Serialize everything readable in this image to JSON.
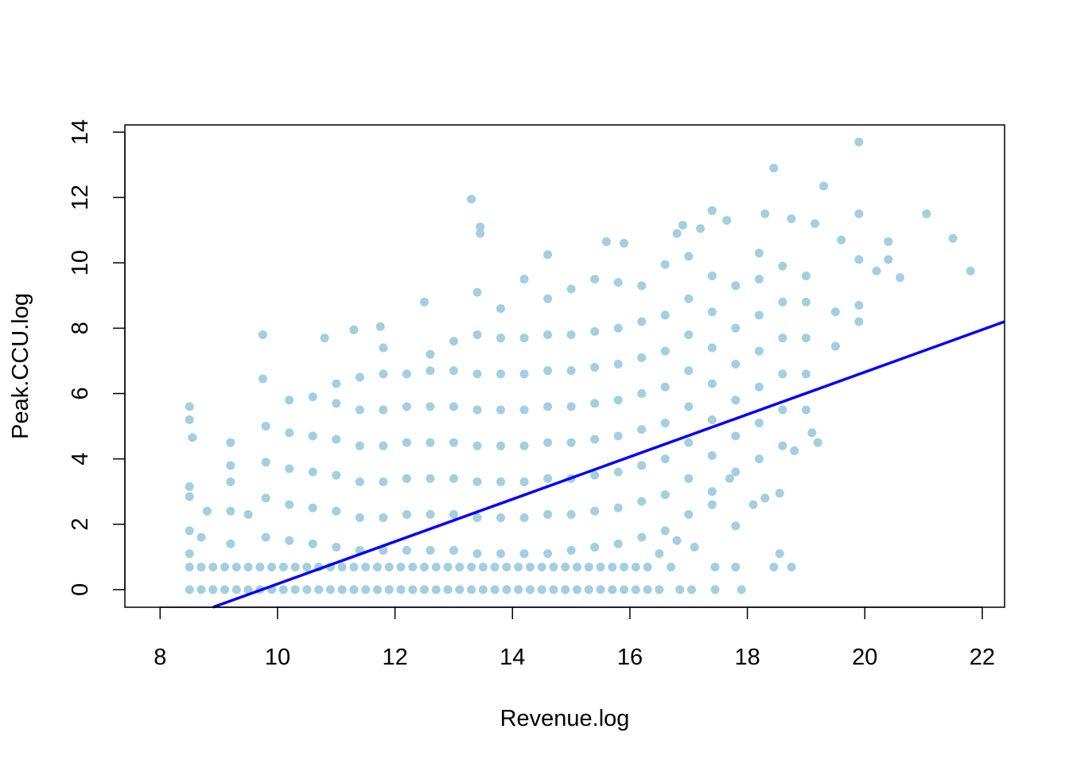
{
  "chart_data": {
    "type": "scatter",
    "x_label": "Revenue.log",
    "y_label": "Peak.CCU.log",
    "xlim": [
      7.4,
      22.38
    ],
    "ylim": [
      -0.54,
      14.22
    ],
    "xticks": [
      8,
      10,
      12,
      14,
      16,
      18,
      20,
      22
    ],
    "yticks": [
      0,
      2,
      4,
      6,
      8,
      10,
      12,
      14
    ],
    "point_color": "#a3cfe0",
    "points": [
      [
        8.5,
        0
      ],
      [
        8.7,
        0
      ],
      [
        8.9,
        0
      ],
      [
        9.1,
        0
      ],
      [
        9.3,
        0
      ],
      [
        9.5,
        0
      ],
      [
        9.7,
        0
      ],
      [
        9.9,
        0
      ],
      [
        10.1,
        0
      ],
      [
        10.3,
        0
      ],
      [
        10.5,
        0
      ],
      [
        10.7,
        0
      ],
      [
        10.9,
        0
      ],
      [
        11.1,
        0
      ],
      [
        11.3,
        0
      ],
      [
        11.5,
        0
      ],
      [
        11.7,
        0
      ],
      [
        11.9,
        0
      ],
      [
        12.1,
        0
      ],
      [
        12.3,
        0
      ],
      [
        12.5,
        0
      ],
      [
        12.7,
        0
      ],
      [
        12.9,
        0
      ],
      [
        13.1,
        0
      ],
      [
        13.3,
        0
      ],
      [
        13.5,
        0
      ],
      [
        13.7,
        0
      ],
      [
        13.9,
        0
      ],
      [
        14.1,
        0
      ],
      [
        14.3,
        0
      ],
      [
        14.5,
        0
      ],
      [
        14.7,
        0
      ],
      [
        14.9,
        0
      ],
      [
        15.1,
        0
      ],
      [
        15.3,
        0
      ],
      [
        15.5,
        0
      ],
      [
        15.7,
        0
      ],
      [
        15.9,
        0
      ],
      [
        16.1,
        0
      ],
      [
        16.3,
        0
      ],
      [
        16.5,
        0
      ],
      [
        16.85,
        0
      ],
      [
        17.05,
        0
      ],
      [
        17.45,
        0
      ],
      [
        17.9,
        0
      ],
      [
        8.5,
        0.69
      ],
      [
        8.7,
        0.69
      ],
      [
        8.9,
        0.69
      ],
      [
        9.1,
        0.69
      ],
      [
        9.3,
        0.69
      ],
      [
        9.5,
        0.69
      ],
      [
        9.7,
        0.69
      ],
      [
        9.9,
        0.69
      ],
      [
        10.1,
        0.69
      ],
      [
        10.3,
        0.69
      ],
      [
        10.5,
        0.69
      ],
      [
        10.7,
        0.69
      ],
      [
        10.9,
        0.69
      ],
      [
        11.1,
        0.69
      ],
      [
        11.3,
        0.69
      ],
      [
        11.5,
        0.69
      ],
      [
        11.7,
        0.69
      ],
      [
        11.9,
        0.69
      ],
      [
        12.1,
        0.69
      ],
      [
        12.3,
        0.69
      ],
      [
        12.5,
        0.69
      ],
      [
        12.7,
        0.69
      ],
      [
        12.9,
        0.69
      ],
      [
        13.1,
        0.69
      ],
      [
        13.3,
        0.69
      ],
      [
        13.5,
        0.69
      ],
      [
        13.7,
        0.69
      ],
      [
        13.9,
        0.69
      ],
      [
        14.1,
        0.69
      ],
      [
        14.3,
        0.69
      ],
      [
        14.5,
        0.69
      ],
      [
        14.7,
        0.69
      ],
      [
        14.9,
        0.69
      ],
      [
        15.1,
        0.69
      ],
      [
        15.3,
        0.69
      ],
      [
        15.5,
        0.69
      ],
      [
        15.7,
        0.69
      ],
      [
        15.9,
        0.69
      ],
      [
        16.1,
        0.69
      ],
      [
        16.3,
        0.69
      ],
      [
        16.7,
        0.69
      ],
      [
        17.45,
        0.69
      ],
      [
        17.8,
        0.69
      ],
      [
        18.45,
        0.69
      ],
      [
        18.75,
        0.69
      ],
      [
        8.5,
        5.6
      ],
      [
        8.5,
        5.2
      ],
      [
        8.55,
        4.65
      ],
      [
        8.5,
        3.15
      ],
      [
        8.5,
        2.85
      ],
      [
        8.5,
        1.8
      ],
      [
        8.5,
        1.1
      ],
      [
        8.7,
        1.6
      ],
      [
        8.8,
        2.4
      ],
      [
        9.2,
        4.5
      ],
      [
        9.2,
        3.8
      ],
      [
        9.2,
        3.3
      ],
      [
        9.2,
        2.4
      ],
      [
        9.2,
        1.4
      ],
      [
        9.5,
        2.3
      ],
      [
        9.75,
        7.8
      ],
      [
        9.75,
        6.45
      ],
      [
        10.8,
        7.7
      ],
      [
        11.3,
        7.95
      ],
      [
        11.75,
        8.05
      ],
      [
        12.5,
        8.8
      ],
      [
        13.3,
        11.95
      ],
      [
        13.45,
        11.1
      ],
      [
        13.45,
        10.9
      ],
      [
        14.6,
        10.25
      ],
      [
        15.6,
        10.65
      ],
      [
        15.9,
        10.6
      ],
      [
        16.6,
        9.95
      ],
      [
        16.8,
        10.9
      ],
      [
        16.9,
        11.15
      ],
      [
        17.2,
        11.05
      ],
      [
        17.4,
        11.6
      ],
      [
        17.65,
        11.3
      ],
      [
        18.45,
        12.9
      ],
      [
        18.3,
        11.5
      ],
      [
        18.75,
        11.35
      ],
      [
        19.15,
        11.2
      ],
      [
        19.3,
        12.35
      ],
      [
        19.9,
        13.7
      ],
      [
        19.9,
        11.5
      ],
      [
        21.05,
        11.5
      ],
      [
        21.5,
        10.75
      ],
      [
        21.8,
        9.75
      ],
      [
        20.6,
        9.55
      ],
      [
        20.4,
        10.65
      ],
      [
        20.4,
        10.1
      ],
      [
        20.2,
        9.75
      ],
      [
        19.6,
        10.7
      ],
      [
        19.9,
        10.1
      ],
      [
        19.9,
        8.7
      ],
      [
        19.9,
        8.2
      ],
      [
        19.5,
        8.5
      ],
      [
        19.5,
        7.45
      ],
      [
        19.1,
        4.8
      ],
      [
        19.2,
        4.5
      ],
      [
        18.8,
        4.25
      ],
      [
        18.55,
        2.95
      ],
      [
        18.55,
        1.1
      ],
      [
        17.8,
        1.95
      ],
      [
        18.1,
        2.6
      ],
      [
        18.3,
        2.8
      ],
      [
        17.7,
        3.4
      ],
      [
        17.4,
        2.6
      ],
      [
        16.8,
        1.5
      ],
      [
        16.5,
        1.1
      ],
      [
        17.1,
        1.3
      ],
      [
        9.8,
        1.6
      ],
      [
        9.8,
        2.8
      ],
      [
        9.8,
        3.9
      ],
      [
        9.8,
        5.0
      ],
      [
        10.2,
        1.5
      ],
      [
        10.2,
        2.6
      ],
      [
        10.2,
        3.7
      ],
      [
        10.2,
        4.8
      ],
      [
        10.2,
        5.8
      ],
      [
        10.6,
        1.4
      ],
      [
        10.6,
        2.5
      ],
      [
        10.6,
        3.6
      ],
      [
        10.6,
        4.7
      ],
      [
        10.6,
        5.9
      ],
      [
        11.0,
        1.3
      ],
      [
        11.0,
        2.4
      ],
      [
        11.0,
        3.5
      ],
      [
        11.0,
        4.6
      ],
      [
        11.0,
        5.7
      ],
      [
        11.0,
        6.3
      ],
      [
        11.4,
        1.2
      ],
      [
        11.4,
        2.2
      ],
      [
        11.4,
        3.3
      ],
      [
        11.4,
        4.4
      ],
      [
        11.4,
        5.5
      ],
      [
        11.4,
        6.5
      ],
      [
        11.8,
        1.2
      ],
      [
        11.8,
        2.2
      ],
      [
        11.8,
        3.3
      ],
      [
        11.8,
        4.4
      ],
      [
        11.8,
        5.5
      ],
      [
        11.8,
        6.6
      ],
      [
        11.8,
        7.4
      ],
      [
        12.2,
        1.2
      ],
      [
        12.2,
        2.3
      ],
      [
        12.2,
        3.4
      ],
      [
        12.2,
        4.5
      ],
      [
        12.2,
        5.6
      ],
      [
        12.2,
        6.6
      ],
      [
        12.6,
        1.2
      ],
      [
        12.6,
        2.3
      ],
      [
        12.6,
        3.4
      ],
      [
        12.6,
        4.5
      ],
      [
        12.6,
        5.6
      ],
      [
        12.6,
        6.7
      ],
      [
        12.6,
        7.2
      ],
      [
        13.0,
        1.2
      ],
      [
        13.0,
        2.3
      ],
      [
        13.0,
        3.4
      ],
      [
        13.0,
        4.5
      ],
      [
        13.0,
        5.6
      ],
      [
        13.0,
        6.7
      ],
      [
        13.0,
        7.6
      ],
      [
        13.4,
        1.1
      ],
      [
        13.4,
        2.2
      ],
      [
        13.4,
        3.3
      ],
      [
        13.4,
        4.4
      ],
      [
        13.4,
        5.5
      ],
      [
        13.4,
        6.6
      ],
      [
        13.4,
        7.8
      ],
      [
        13.4,
        9.1
      ],
      [
        13.8,
        1.1
      ],
      [
        13.8,
        2.2
      ],
      [
        13.8,
        3.3
      ],
      [
        13.8,
        4.4
      ],
      [
        13.8,
        5.5
      ],
      [
        13.8,
        6.6
      ],
      [
        13.8,
        7.7
      ],
      [
        13.8,
        8.6
      ],
      [
        14.2,
        1.1
      ],
      [
        14.2,
        2.2
      ],
      [
        14.2,
        3.3
      ],
      [
        14.2,
        4.4
      ],
      [
        14.2,
        5.5
      ],
      [
        14.2,
        6.6
      ],
      [
        14.2,
        7.7
      ],
      [
        14.2,
        9.5
      ],
      [
        14.6,
        1.1
      ],
      [
        14.6,
        2.3
      ],
      [
        14.6,
        3.4
      ],
      [
        14.6,
        4.5
      ],
      [
        14.6,
        5.6
      ],
      [
        14.6,
        6.7
      ],
      [
        14.6,
        7.8
      ],
      [
        14.6,
        8.9
      ],
      [
        15.0,
        1.2
      ],
      [
        15.0,
        2.3
      ],
      [
        15.0,
        3.4
      ],
      [
        15.0,
        4.5
      ],
      [
        15.0,
        5.6
      ],
      [
        15.0,
        6.7
      ],
      [
        15.0,
        7.8
      ],
      [
        15.0,
        9.2
      ],
      [
        15.4,
        1.3
      ],
      [
        15.4,
        2.4
      ],
      [
        15.4,
        3.5
      ],
      [
        15.4,
        4.6
      ],
      [
        15.4,
        5.7
      ],
      [
        15.4,
        6.8
      ],
      [
        15.4,
        7.9
      ],
      [
        15.4,
        9.5
      ],
      [
        15.8,
        1.4
      ],
      [
        15.8,
        2.5
      ],
      [
        15.8,
        3.6
      ],
      [
        15.8,
        4.7
      ],
      [
        15.8,
        5.8
      ],
      [
        15.8,
        6.9
      ],
      [
        15.8,
        8.0
      ],
      [
        15.8,
        9.4
      ],
      [
        16.2,
        1.6
      ],
      [
        16.2,
        2.7
      ],
      [
        16.2,
        3.8
      ],
      [
        16.2,
        4.9
      ],
      [
        16.2,
        6.0
      ],
      [
        16.2,
        7.1
      ],
      [
        16.2,
        8.2
      ],
      [
        16.2,
        9.3
      ],
      [
        16.6,
        1.8
      ],
      [
        16.6,
        2.9
      ],
      [
        16.6,
        4.0
      ],
      [
        16.6,
        5.1
      ],
      [
        16.6,
        6.2
      ],
      [
        16.6,
        7.3
      ],
      [
        16.6,
        8.4
      ],
      [
        17.0,
        2.3
      ],
      [
        17.0,
        3.4
      ],
      [
        17.0,
        4.5
      ],
      [
        17.0,
        5.6
      ],
      [
        17.0,
        6.7
      ],
      [
        17.0,
        7.8
      ],
      [
        17.0,
        8.9
      ],
      [
        17.0,
        10.2
      ],
      [
        17.4,
        3.0
      ],
      [
        17.4,
        4.1
      ],
      [
        17.4,
        5.2
      ],
      [
        17.4,
        6.3
      ],
      [
        17.4,
        7.4
      ],
      [
        17.4,
        8.5
      ],
      [
        17.4,
        9.6
      ],
      [
        17.8,
        3.6
      ],
      [
        17.8,
        4.7
      ],
      [
        17.8,
        5.8
      ],
      [
        17.8,
        6.9
      ],
      [
        17.8,
        8.0
      ],
      [
        17.8,
        9.3
      ],
      [
        18.2,
        4.0
      ],
      [
        18.2,
        5.1
      ],
      [
        18.2,
        6.2
      ],
      [
        18.2,
        7.3
      ],
      [
        18.2,
        8.4
      ],
      [
        18.2,
        9.5
      ],
      [
        18.2,
        10.3
      ],
      [
        18.6,
        4.4
      ],
      [
        18.6,
        5.5
      ],
      [
        18.6,
        6.6
      ],
      [
        18.6,
        7.7
      ],
      [
        18.6,
        8.8
      ],
      [
        18.6,
        9.9
      ],
      [
        19.0,
        5.5
      ],
      [
        19.0,
        6.6
      ],
      [
        19.0,
        7.7
      ],
      [
        19.0,
        8.8
      ],
      [
        19.0,
        9.6
      ]
    ],
    "fit_line": {
      "color": "#0000ff",
      "x": [
        8.9,
        22.38
      ],
      "y": [
        -0.54,
        8.2
      ]
    }
  }
}
